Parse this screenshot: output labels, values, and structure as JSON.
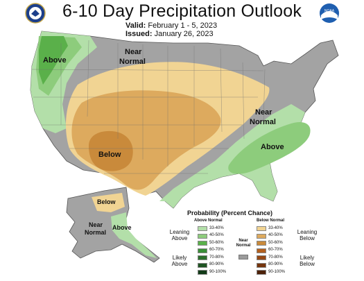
{
  "header": {
    "title": "6-10 Day Precipitation Outlook",
    "valid_label": "Valid:",
    "valid_value": "February 1 - 5, 2023",
    "issued_label": "Issued:",
    "issued_value": "January 26, 2023"
  },
  "logos": {
    "left": "seal-icon",
    "right": "noaa-logo-icon",
    "right_text": "NOAA"
  },
  "map_labels": {
    "above_west": "Above",
    "near_normal_north_1": "Near",
    "near_normal_north_2": "Normal",
    "below_southwest": "Below",
    "near_normal_east_1": "Near",
    "near_normal_east_2": "Normal",
    "above_southeast": "Above",
    "alaska_below": "Below",
    "alaska_near_1": "Near",
    "alaska_near_2": "Normal",
    "alaska_above": "Above"
  },
  "legend": {
    "title": "Probability (Percent Chance)",
    "above_header": "Above Normal",
    "below_header": "Below Normal",
    "near_normal_1": "Near",
    "near_normal_2": "Normal",
    "leaning_above_1": "Leaning",
    "leaning_above_2": "Above",
    "likely_above_1": "Likely",
    "likely_above_2": "Above",
    "leaning_below_1": "Leaning",
    "leaning_below_2": "Below",
    "likely_below_1": "Likely",
    "likely_below_2": "Below",
    "above_ranges": [
      "33-40%",
      "40-50%",
      "50-60%",
      "60-70%",
      "70-80%",
      "80-90%",
      "90-100%"
    ],
    "below_ranges": [
      "33-40%",
      "40-50%",
      "50-60%",
      "60-70%",
      "70-80%",
      "80-90%",
      "90-100%"
    ],
    "above_colors": [
      "#b3dfa9",
      "#8dcc7c",
      "#5ab04a",
      "#3a8f37",
      "#2c6e2b",
      "#1f5422",
      "#123a17"
    ],
    "below_colors": [
      "#f1d493",
      "#ddaa5e",
      "#c98a3b",
      "#b3601e",
      "#954814",
      "#74340d",
      "#4c2108"
    ],
    "near_color": "#9b9b9b"
  }
}
